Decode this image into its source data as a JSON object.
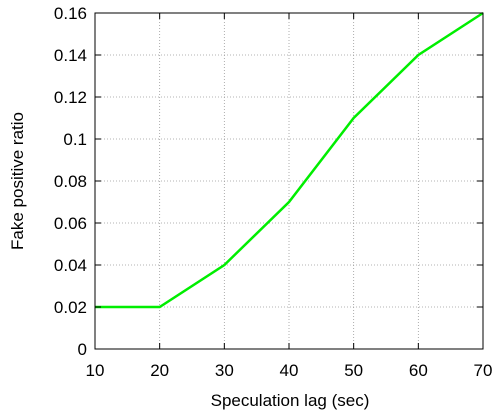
{
  "chart_data": {
    "type": "line",
    "title": "",
    "xlabel": "Speculation lag (sec)",
    "ylabel": "Fake positive ratio",
    "xlim": [
      10,
      70
    ],
    "ylim": [
      0,
      0.16
    ],
    "x_ticks": [
      10,
      20,
      30,
      40,
      50,
      60,
      70
    ],
    "x_tick_labels": [
      "10",
      "20",
      "30",
      "40",
      "50",
      "60",
      "70"
    ],
    "y_ticks": [
      0,
      0.02,
      0.04,
      0.06,
      0.08,
      0.1,
      0.12,
      0.14,
      0.16
    ],
    "y_tick_labels": [
      "0",
      "0.02",
      "0.04",
      "0.06",
      "0.08",
      "0.1",
      "0.12",
      "0.14",
      "0.16"
    ],
    "grid": true,
    "legend": "none",
    "x": [
      10,
      20,
      30,
      40,
      50,
      60,
      70
    ],
    "series": [
      {
        "values": [
          0.02,
          0.02,
          0.04,
          0.07,
          0.11,
          0.14,
          0.16
        ],
        "color": "#00ee00"
      }
    ]
  }
}
